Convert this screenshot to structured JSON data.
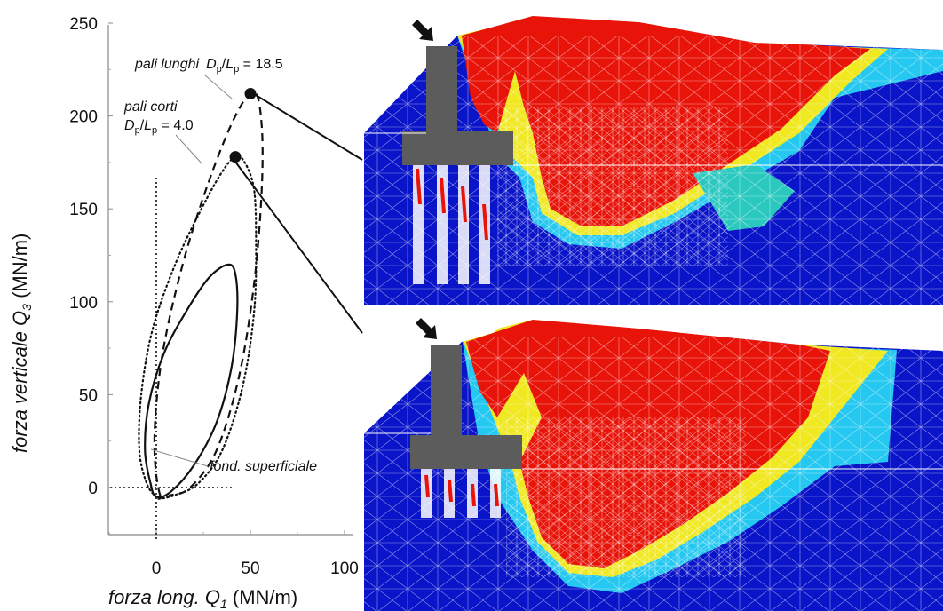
{
  "chart_data": {
    "type": "line",
    "title": "",
    "xlabel": {
      "italic": "forza long. Q",
      "sub": "1",
      "unit": " (MN/m)"
    },
    "ylabel": {
      "italic": "forza verticale Q",
      "sub": "3",
      "unit": " (MN/m)"
    },
    "xlim": [
      -25,
      100
    ],
    "ylim": [
      -25,
      250
    ],
    "xticks": [
      "0",
      "50",
      "100"
    ],
    "yticks": [
      "0",
      "50",
      "100",
      "150",
      "200",
      "250"
    ],
    "xtick_values": [
      0,
      50,
      100
    ],
    "ytick_values": [
      0,
      50,
      100,
      150,
      200,
      250
    ],
    "series": [
      {
        "name": "fond. superficiale",
        "style": "solid",
        "x": [
          0,
          -3,
          -6,
          -4,
          4,
          16,
          28,
          38,
          42,
          43,
          40,
          32,
          20,
          8,
          0
        ],
        "y": [
          -5,
          2,
          20,
          45,
          72,
          95,
          113,
          120,
          115,
          95,
          65,
          35,
          12,
          -2,
          -5
        ]
      },
      {
        "name": "pali corti",
        "style": "dotted",
        "x": [
          0,
          -5,
          -9,
          -8,
          -2,
          10,
          24,
          35,
          42,
          47,
          52,
          53,
          52,
          46,
          35,
          22,
          10,
          2,
          0
        ],
        "y": [
          -5,
          2,
          20,
          50,
          85,
          120,
          150,
          170,
          178,
          175,
          160,
          130,
          95,
          55,
          20,
          2,
          -4,
          -6,
          -5
        ]
      },
      {
        "name": "pali lunghi",
        "style": "dashed",
        "x": [
          2,
          -1,
          3,
          14,
          28,
          42,
          52,
          56,
          56,
          52,
          44,
          32,
          18,
          8,
          2
        ],
        "y": [
          -4,
          25,
          70,
          120,
          165,
          200,
          213,
          195,
          160,
          110,
          60,
          20,
          0,
          -4,
          -4
        ]
      }
    ],
    "points": [
      {
        "label": "pali lunghi",
        "x": 50,
        "y": 212
      },
      {
        "label": "pali corti",
        "x": 42,
        "y": 178
      }
    ],
    "annotations": {
      "pali_lunghi": {
        "label": "pali lunghi",
        "ratio_D": "D",
        "ratio_Dsub": "p",
        "slash": "/",
        "ratio_L": "L",
        "ratio_Lsub": "p",
        "value": " = 18.5"
      },
      "pali_corti": {
        "label": "pali corti",
        "ratio_D": "D",
        "ratio_Dsub": "p",
        "slash": "/",
        "ratio_L": "L",
        "ratio_Lsub": "p",
        "value": " = 4.0"
      },
      "shallow": {
        "label": "fond. superficiale"
      }
    }
  },
  "colors": {
    "contour_high": "#e8140a",
    "contour_low": "#0a14c8",
    "structure": "#5c5c5c",
    "mesh": "#ffffff"
  },
  "panels": [
    {
      "name": "long-piles-contour",
      "arrow": "load-arrow"
    },
    {
      "name": "short-piles-contour",
      "arrow": "load-arrow"
    }
  ]
}
